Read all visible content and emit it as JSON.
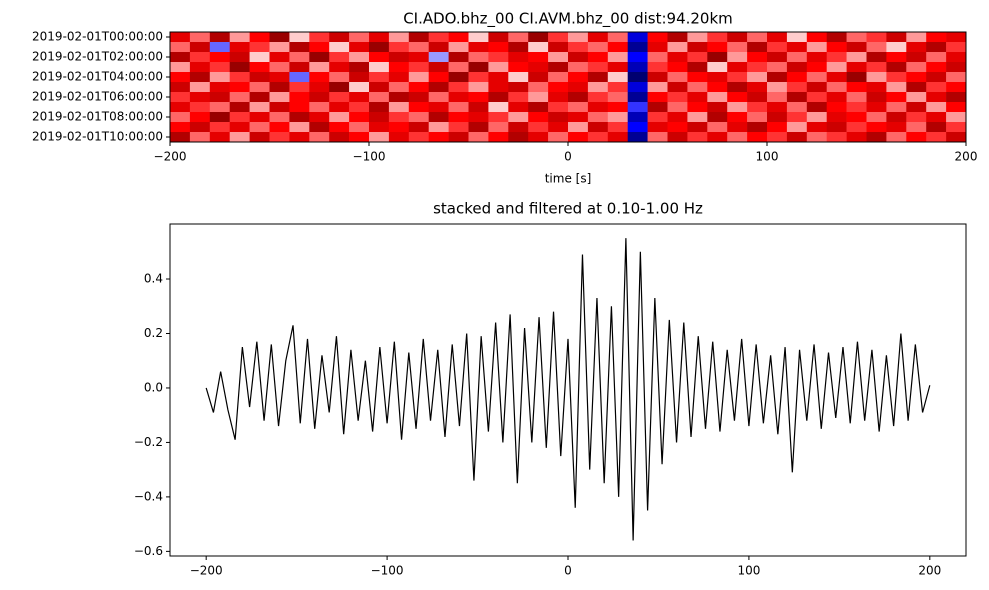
{
  "chart_data": [
    {
      "type": "heatmap",
      "title": "CI.ADO.bhz_00 CI.AVM.bhz_00  dist:94.20km",
      "xlabel": "time [s]",
      "rows": [
        "2019-02-01T00:00:00",
        null,
        "2019-02-01T02:00:00",
        null,
        "2019-02-01T04:00:00",
        null,
        "2019-02-01T06:00:00",
        null,
        "2019-02-01T08:00:00",
        null,
        "2019-02-01T10:00:00"
      ],
      "x": [
        -195,
        -185,
        -175,
        -165,
        -155,
        -145,
        -135,
        -125,
        -115,
        -105,
        -95,
        -85,
        -75,
        -65,
        -55,
        -45,
        -35,
        -25,
        -15,
        -5,
        5,
        15,
        25,
        35,
        45,
        55,
        65,
        75,
        85,
        95,
        105,
        115,
        125,
        135,
        145,
        155,
        165,
        175,
        185,
        195
      ],
      "values": [
        [
          0.6,
          0.3,
          0.8,
          0.2,
          0.5,
          0.9,
          0.1,
          0.4,
          0.7,
          0.3,
          0.6,
          0.2,
          0.8,
          0.4,
          0.5,
          0.1,
          0.7,
          0.3,
          0.9,
          0.4,
          0.2,
          0.6,
          0.3,
          -0.6,
          0.5,
          0.8,
          0.2,
          0.4,
          0.7,
          0.3,
          0.6,
          0.1,
          0.5,
          0.8,
          0.3,
          0.4,
          0.7,
          0.2,
          0.5,
          0.6
        ],
        [
          0.3,
          0.7,
          -0.3,
          0.6,
          0.4,
          0.2,
          0.8,
          0.5,
          0.1,
          0.6,
          0.9,
          0.4,
          0.3,
          0.7,
          0.2,
          0.6,
          0.5,
          0.8,
          0.1,
          0.7,
          0.4,
          0.3,
          0.5,
          -0.8,
          0.6,
          0.2,
          0.7,
          0.5,
          0.3,
          0.8,
          0.4,
          0.6,
          0.2,
          0.5,
          0.7,
          0.3,
          0.1,
          0.6,
          0.8,
          0.4
        ],
        [
          0.8,
          0.4,
          0.5,
          0.7,
          0.1,
          0.6,
          0.3,
          0.9,
          0.4,
          0.2,
          0.5,
          0.7,
          0.6,
          -0.2,
          0.8,
          0.3,
          0.4,
          0.6,
          0.5,
          0.2,
          0.7,
          0.5,
          0.2,
          -0.5,
          0.3,
          0.6,
          0.4,
          0.9,
          0.2,
          0.5,
          0.7,
          0.3,
          0.6,
          0.4,
          0.2,
          0.8,
          0.5,
          0.7,
          0.3,
          0.6
        ],
        [
          0.2,
          0.6,
          0.4,
          0.9,
          0.5,
          0.3,
          0.7,
          0.2,
          0.6,
          0.8,
          0.1,
          0.5,
          0.4,
          0.7,
          0.3,
          0.9,
          0.2,
          0.5,
          0.6,
          0.8,
          0.3,
          0.4,
          0.6,
          -0.7,
          0.4,
          0.5,
          0.8,
          0.1,
          0.6,
          0.4,
          0.3,
          0.7,
          0.5,
          0.2,
          0.6,
          0.4,
          0.8,
          0.3,
          0.5,
          0.7
        ],
        [
          0.5,
          0.8,
          0.2,
          0.4,
          0.7,
          0.6,
          -0.3,
          0.5,
          0.3,
          0.7,
          0.4,
          0.6,
          0.2,
          0.5,
          0.9,
          0.4,
          0.6,
          0.1,
          0.7,
          0.3,
          0.5,
          0.8,
          0.1,
          -0.9,
          0.7,
          0.3,
          0.5,
          0.6,
          0.4,
          0.2,
          0.8,
          0.5,
          0.3,
          0.6,
          0.9,
          0.2,
          0.4,
          0.5,
          0.7,
          0.3
        ],
        [
          0.7,
          0.2,
          0.6,
          0.5,
          0.3,
          0.8,
          0.4,
          0.6,
          0.9,
          0.1,
          0.7,
          0.3,
          0.5,
          0.8,
          0.4,
          0.2,
          0.6,
          0.7,
          0.3,
          0.5,
          0.6,
          0.2,
          0.4,
          -0.6,
          0.2,
          0.7,
          0.3,
          0.5,
          0.8,
          0.6,
          0.2,
          0.4,
          0.7,
          0.3,
          0.5,
          0.6,
          0.2,
          0.8,
          0.4,
          0.5
        ],
        [
          0.4,
          0.6,
          0.7,
          0.3,
          0.8,
          0.2,
          0.5,
          0.7,
          0.4,
          0.6,
          0.3,
          0.8,
          0.7,
          0.3,
          0.6,
          0.5,
          0.8,
          0.4,
          0.2,
          0.6,
          0.8,
          0.4,
          0.3,
          -0.8,
          0.5,
          0.4,
          0.6,
          0.2,
          0.5,
          0.7,
          0.3,
          0.8,
          0.4,
          0.6,
          0.3,
          0.7,
          0.5,
          0.2,
          0.6,
          0.8
        ],
        [
          0.6,
          0.4,
          0.3,
          0.8,
          0.2,
          0.7,
          0.5,
          0.3,
          0.6,
          0.4,
          0.8,
          0.2,
          0.5,
          0.6,
          0.3,
          0.7,
          0.1,
          0.6,
          0.8,
          0.4,
          0.3,
          0.6,
          0.5,
          -0.4,
          0.8,
          0.3,
          0.5,
          0.7,
          0.2,
          0.4,
          0.6,
          0.3,
          0.8,
          0.5,
          0.4,
          0.6,
          0.3,
          0.7,
          0.2,
          0.5
        ],
        [
          0.3,
          0.5,
          0.9,
          0.4,
          0.6,
          0.3,
          0.8,
          0.6,
          0.2,
          0.5,
          0.7,
          0.4,
          0.3,
          0.8,
          0.5,
          0.6,
          0.4,
          0.2,
          0.5,
          0.7,
          0.6,
          0.3,
          0.2,
          -0.7,
          0.4,
          0.6,
          0.2,
          0.8,
          0.5,
          0.3,
          0.7,
          0.4,
          0.2,
          0.6,
          0.5,
          0.3,
          0.7,
          0.4,
          0.6,
          0.2
        ],
        [
          0.5,
          0.7,
          0.4,
          0.6,
          0.3,
          0.5,
          0.2,
          0.8,
          0.5,
          0.3,
          0.6,
          0.5,
          0.7,
          0.2,
          0.4,
          0.8,
          0.3,
          0.7,
          0.4,
          0.6,
          0.2,
          0.7,
          0.4,
          -0.5,
          0.6,
          0.5,
          0.7,
          0.3,
          0.6,
          0.8,
          0.5,
          0.2,
          0.6,
          0.7,
          0.4,
          0.5,
          0.6,
          0.3,
          0.8,
          0.4
        ],
        [
          0.8,
          0.3,
          0.6,
          0.2,
          0.7,
          0.4,
          0.6,
          0.3,
          0.7,
          0.5,
          0.2,
          0.6,
          0.4,
          0.5,
          0.7,
          0.3,
          0.5,
          0.8,
          0.6,
          0.3,
          0.5,
          0.4,
          0.6,
          -0.8,
          0.3,
          0.7,
          0.4,
          0.6,
          0.3,
          0.5,
          0.4,
          0.7,
          0.3,
          0.4,
          0.6,
          0.8,
          0.3,
          0.5,
          0.4,
          0.7
        ]
      ],
      "zlim": [
        -1,
        1
      ],
      "colors": [
        "#00004c",
        "#0000ff",
        "#ffffff",
        "#ff0000",
        "#7f0000"
      ],
      "xlim": [
        -200,
        200
      ],
      "xticks": [
        {
          "value": -200,
          "label": "−200"
        },
        {
          "value": -100,
          "label": "−100"
        },
        0,
        100,
        200
      ]
    },
    {
      "type": "line",
      "title": "stacked and filtered at 0.10-1.00 Hz",
      "color": "#000000",
      "x": [
        -200,
        -196,
        -192,
        -188,
        -184,
        -180,
        -176,
        -172,
        -168,
        -164,
        -160,
        -156,
        -152,
        -148,
        -144,
        -140,
        -136,
        -132,
        -128,
        -124,
        -120,
        -116,
        -112,
        -108,
        -104,
        -100,
        -96,
        -92,
        -88,
        -84,
        -80,
        -76,
        -72,
        -68,
        -64,
        -60,
        -56,
        -52,
        -48,
        -44,
        -40,
        -36,
        -32,
        -28,
        -24,
        -20,
        -16,
        -12,
        -8,
        -4,
        0,
        4,
        8,
        12,
        16,
        20,
        24,
        28,
        32,
        36,
        40,
        44,
        48,
        52,
        56,
        60,
        64,
        68,
        72,
        76,
        80,
        84,
        88,
        92,
        96,
        100,
        104,
        108,
        112,
        116,
        120,
        124,
        128,
        132,
        136,
        140,
        144,
        148,
        152,
        156,
        160,
        164,
        168,
        172,
        176,
        180,
        184,
        188,
        192,
        196,
        200
      ],
      "values": [
        0.0,
        -0.09,
        0.06,
        -0.08,
        -0.19,
        0.15,
        -0.07,
        0.17,
        -0.12,
        0.16,
        -0.14,
        0.1,
        0.23,
        -0.13,
        0.18,
        -0.15,
        0.12,
        -0.09,
        0.19,
        -0.17,
        0.14,
        -0.12,
        0.1,
        -0.16,
        0.15,
        -0.13,
        0.17,
        -0.19,
        0.13,
        -0.15,
        0.18,
        -0.12,
        0.14,
        -0.18,
        0.16,
        -0.14,
        0.2,
        -0.34,
        0.19,
        -0.16,
        0.24,
        -0.2,
        0.27,
        -0.35,
        0.22,
        -0.2,
        0.26,
        -0.22,
        0.28,
        -0.25,
        0.18,
        -0.44,
        0.49,
        -0.3,
        0.33,
        -0.35,
        0.3,
        -0.4,
        0.55,
        -0.56,
        0.5,
        -0.45,
        0.33,
        -0.28,
        0.25,
        -0.2,
        0.24,
        -0.18,
        0.19,
        -0.15,
        0.17,
        -0.16,
        0.14,
        -0.12,
        0.18,
        -0.14,
        0.16,
        -0.13,
        0.12,
        -0.17,
        0.15,
        -0.31,
        0.14,
        -0.12,
        0.16,
        -0.15,
        0.13,
        -0.11,
        0.15,
        -0.13,
        0.17,
        -0.12,
        0.14,
        -0.16,
        0.12,
        -0.14,
        0.2,
        -0.12,
        0.16,
        -0.09,
        0.01
      ],
      "xlim": [
        -220,
        220
      ],
      "ylim": [
        -0.617,
        0.602
      ],
      "xticks": [
        {
          "value": -200,
          "label": "−200"
        },
        {
          "value": -100,
          "label": "−100"
        },
        0,
        100,
        200
      ],
      "yticks": [
        {
          "value": -0.6,
          "label": "−0.6"
        },
        {
          "value": -0.4,
          "label": "−0.4"
        },
        {
          "value": -0.2,
          "label": "−0.2"
        },
        {
          "value": 0,
          "label": "0.0"
        },
        0.2,
        0.4
      ]
    }
  ]
}
